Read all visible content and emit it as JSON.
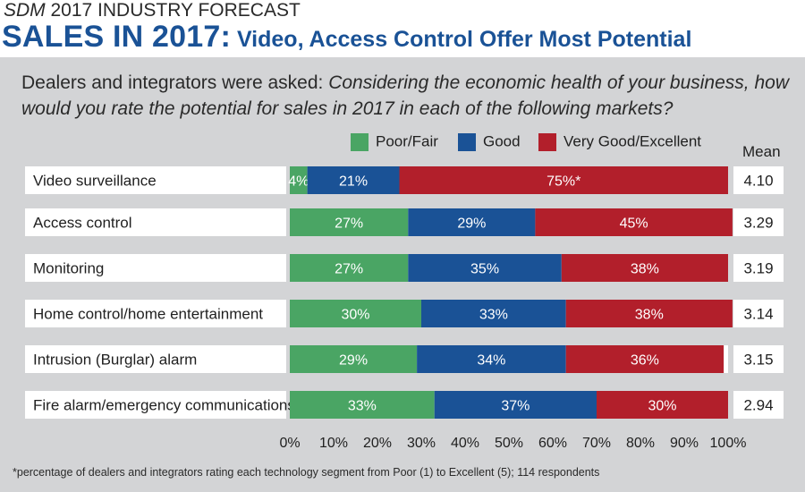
{
  "header": {
    "kicker_italic": "SDM",
    "kicker_rest": " 2017 INDUSTRY FORECAST",
    "title_main": "SALES IN 2017:",
    "title_sub": " Video, Access Control Offer Most Potential"
  },
  "question": {
    "plain": "Dealers and integrators were asked: ",
    "italic": "Considering the economic health of your business, how would you rate the potential for sales in 2017 in each of the following markets?"
  },
  "mean_label": "Mean",
  "footnote": "*percentage of dealers and integrators rating each technology segment from Poor (1) to Excellent (5); 114 respondents",
  "colors": {
    "poor_fair": "#4aa564",
    "good": "#1a5296",
    "very_good_excellent": "#b21f2b",
    "panel": "#d3d4d6",
    "headline": "#1a5296"
  },
  "chart_data": {
    "type": "bar",
    "orientation": "horizontal",
    "stacked": true,
    "categories": [
      "Video surveillance",
      "Access control",
      "Monitoring",
      "Home control/home entertainment",
      "Intrusion (Burglar) alarm",
      "Fire alarm/emergency communications"
    ],
    "series": [
      {
        "name": "Poor/Fair",
        "values": [
          4,
          27,
          27,
          30,
          29,
          33
        ],
        "labels": [
          "4%",
          "27%",
          "27%",
          "30%",
          "29%",
          "33%"
        ]
      },
      {
        "name": "Good",
        "values": [
          21,
          29,
          35,
          33,
          34,
          37
        ],
        "labels": [
          "21%",
          "29%",
          "35%",
          "33%",
          "34%",
          "37%"
        ]
      },
      {
        "name": "Very Good/Excellent",
        "values": [
          75,
          45,
          38,
          38,
          36,
          30
        ],
        "labels": [
          "75%*",
          "45%",
          "38%",
          "38%",
          "36%",
          "30%"
        ]
      }
    ],
    "means": [
      "4.10",
      "3.29",
      "3.19",
      "3.14",
      "3.15",
      "2.94"
    ],
    "xlim": [
      0,
      100
    ],
    "xticks": [
      "0%",
      "10%",
      "20%",
      "30%",
      "40%",
      "50%",
      "60%",
      "70%",
      "80%",
      "90%",
      "100%"
    ],
    "legend_position": "top",
    "grid": false
  }
}
